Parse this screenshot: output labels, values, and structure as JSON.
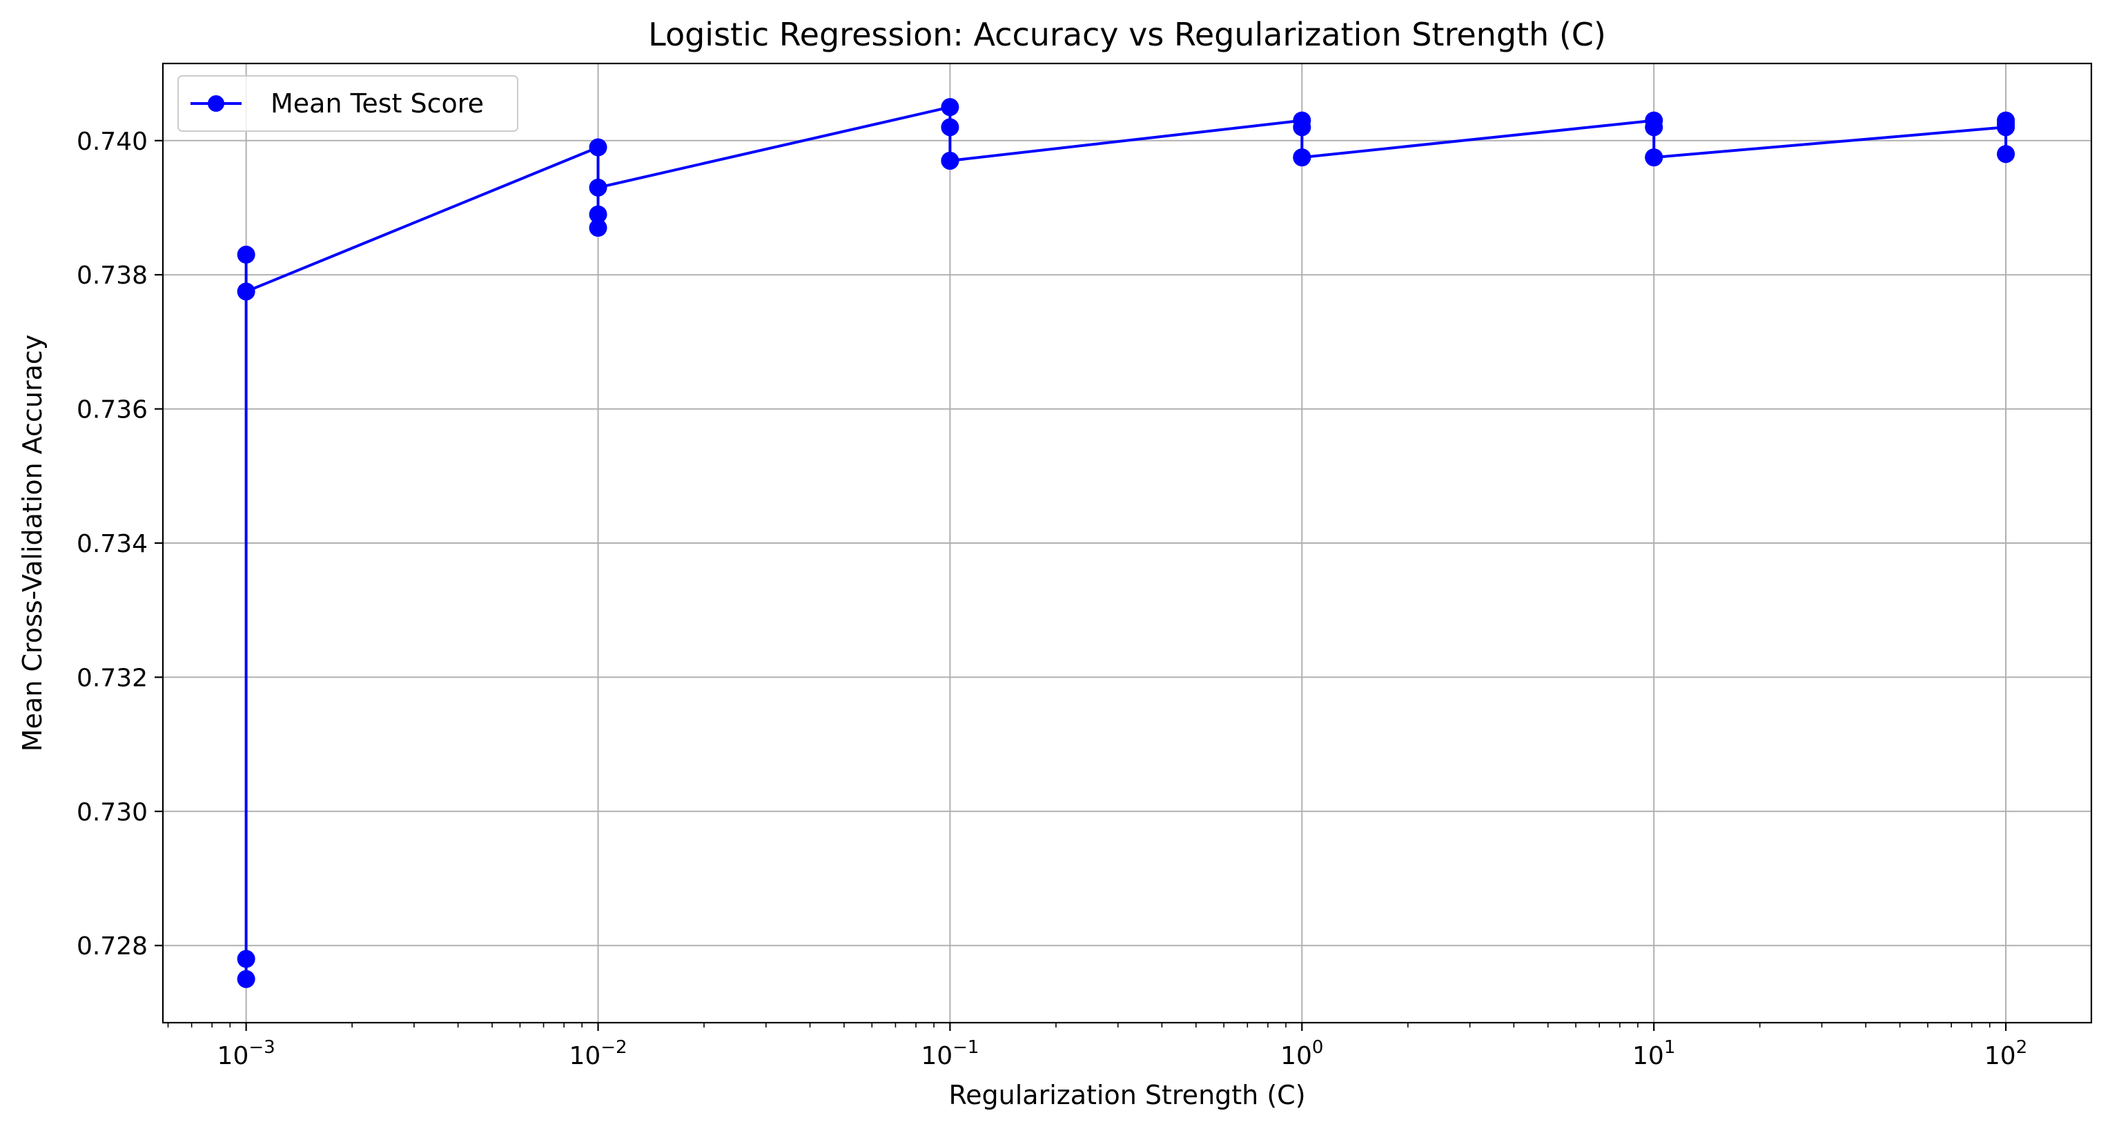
{
  "chart_data": {
    "type": "line",
    "title": "Logistic Regression: Accuracy vs Regularization Strength (C)",
    "xlabel": "Regularization Strength (C)",
    "ylabel": "Mean Cross-Validation Accuracy",
    "xscale": "log",
    "xlim": [
      0.00058,
      175
    ],
    "ylim": [
      0.72685,
      0.74115
    ],
    "grid": true,
    "legend_position": "upper-left",
    "x_ticks": [
      {
        "value": 0.001,
        "base": "10",
        "exp": "−3"
      },
      {
        "value": 0.01,
        "base": "10",
        "exp": "−2"
      },
      {
        "value": 0.1,
        "base": "10",
        "exp": "−1"
      },
      {
        "value": 1,
        "base": "10",
        "exp": "0"
      },
      {
        "value": 10,
        "base": "10",
        "exp": "1"
      },
      {
        "value": 100,
        "base": "10",
        "exp": "2"
      }
    ],
    "y_ticks": [
      {
        "value": 0.728,
        "label": "0.728"
      },
      {
        "value": 0.73,
        "label": "0.730"
      },
      {
        "value": 0.732,
        "label": "0.732"
      },
      {
        "value": 0.734,
        "label": "0.734"
      },
      {
        "value": 0.736,
        "label": "0.736"
      },
      {
        "value": 0.738,
        "label": "0.738"
      },
      {
        "value": 0.74,
        "label": "0.740"
      }
    ],
    "series": [
      {
        "name": "Mean Test Score",
        "color": "#0000ff",
        "marker": "circle",
        "x": [
          0.001,
          0.001,
          0.001,
          0.001,
          0.01,
          0.01,
          0.01,
          0.01,
          0.1,
          0.1,
          0.1,
          0.1,
          1,
          1,
          1,
          1,
          10,
          10,
          10,
          10,
          100,
          100,
          100,
          100
        ],
        "y": [
          0.7383,
          0.7278,
          0.7275,
          0.73775,
          0.7399,
          0.7387,
          0.7389,
          0.7393,
          0.7405,
          0.7397,
          0.7402,
          0.7397,
          0.7403,
          0.73975,
          0.7402,
          0.73975,
          0.7403,
          0.73975,
          0.7402,
          0.73975,
          0.7402,
          0.7398,
          0.7403,
          0.74025
        ]
      }
    ]
  }
}
